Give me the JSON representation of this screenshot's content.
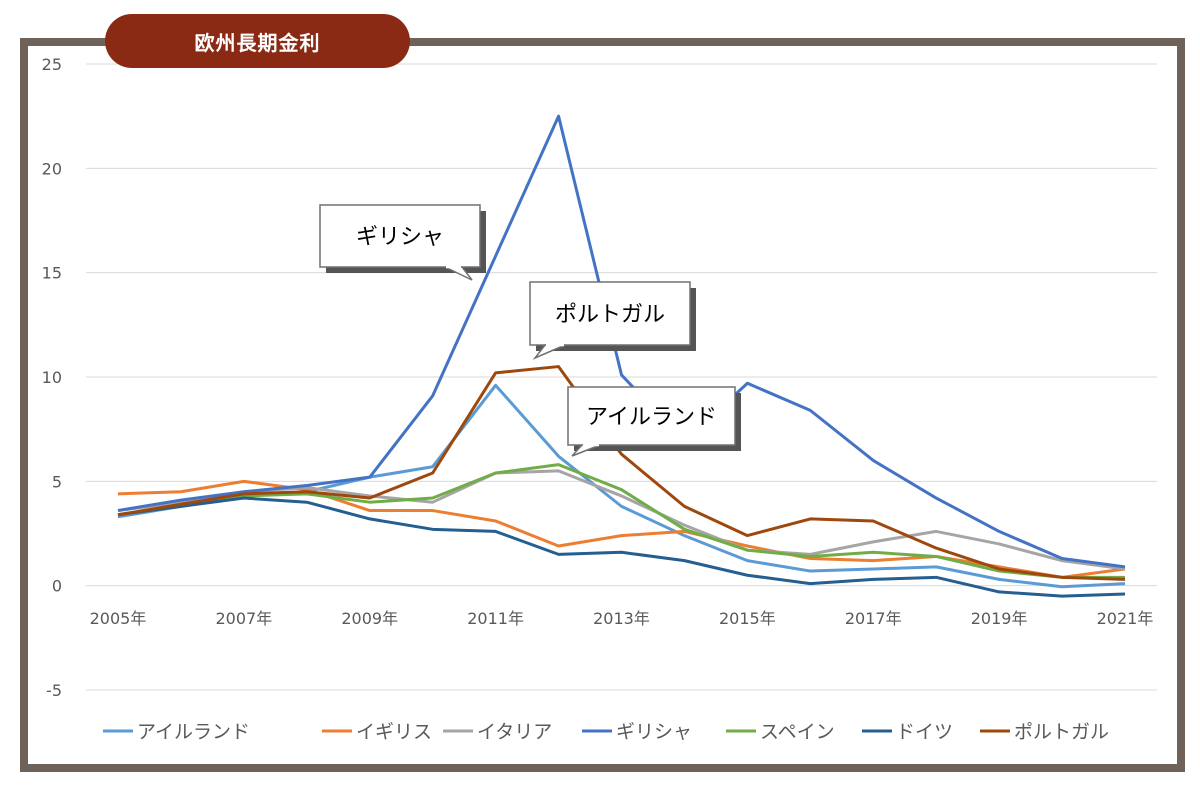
{
  "chart_data": {
    "type": "line",
    "title": "欧州長期金利",
    "xlabel": "",
    "ylabel": "",
    "x": [
      2005,
      2006,
      2007,
      2008,
      2009,
      2010,
      2011,
      2012,
      2013,
      2014,
      2015,
      2016,
      2017,
      2018,
      2019,
      2020,
      2021
    ],
    "x_tick_labels": [
      "2005年",
      "2007年",
      "2009年",
      "2011年",
      "2013年",
      "2015年",
      "2017年",
      "2019年",
      "2021年"
    ],
    "y_tick_labels": [
      "25",
      "20",
      "15",
      "10",
      "5",
      "0",
      "-5"
    ],
    "ylim": [
      -5,
      25
    ],
    "grid": true,
    "legend_position": "bottom",
    "series": [
      {
        "name": "アイルランド",
        "color": "#5b9bd5",
        "values": [
          3.3,
          3.8,
          4.3,
          4.5,
          5.2,
          5.7,
          9.6,
          6.2,
          3.8,
          2.4,
          1.2,
          0.7,
          0.8,
          0.9,
          0.3,
          -0.05,
          0.1
        ]
      },
      {
        "name": "イギリス",
        "color": "#ed7d31",
        "values": [
          4.4,
          4.5,
          5.0,
          4.6,
          3.6,
          3.6,
          3.1,
          1.9,
          2.4,
          2.6,
          1.9,
          1.3,
          1.2,
          1.4,
          0.9,
          0.4,
          0.8
        ]
      },
      {
        "name": "イタリア",
        "color": "#a5a5a5",
        "values": [
          3.6,
          4.0,
          4.5,
          4.7,
          4.3,
          4.0,
          5.4,
          5.5,
          4.3,
          2.9,
          1.7,
          1.5,
          2.1,
          2.6,
          2.0,
          1.2,
          0.8
        ]
      },
      {
        "name": "ギリシャ",
        "color": "#4472c4",
        "values": [
          3.6,
          4.1,
          4.5,
          4.8,
          5.2,
          9.1,
          15.8,
          22.5,
          10.1,
          6.9,
          9.7,
          8.4,
          6.0,
          4.2,
          2.6,
          1.3,
          0.9
        ]
      },
      {
        "name": "スペイン",
        "color": "#70ad47",
        "values": [
          3.4,
          3.8,
          4.3,
          4.4,
          4.0,
          4.2,
          5.4,
          5.8,
          4.6,
          2.7,
          1.7,
          1.4,
          1.6,
          1.4,
          0.7,
          0.4,
          0.4
        ]
      },
      {
        "name": "ドイツ",
        "color": "#255e91",
        "values": [
          3.4,
          3.8,
          4.2,
          4.0,
          3.2,
          2.7,
          2.6,
          1.5,
          1.6,
          1.2,
          0.5,
          0.1,
          0.3,
          0.4,
          -0.3,
          -0.5,
          -0.4
        ]
      },
      {
        "name": "ポルトガル",
        "color": "#9e480e",
        "values": [
          3.4,
          3.9,
          4.4,
          4.5,
          4.2,
          5.4,
          10.2,
          10.5,
          6.3,
          3.8,
          2.4,
          3.2,
          3.1,
          1.8,
          0.8,
          0.4,
          0.3
        ]
      }
    ],
    "annotations": [
      "ギリシャ",
      "ポルトガル",
      "アイルランド"
    ]
  },
  "colors": {
    "frame": "#6f6259",
    "title_background": "#8b2a14",
    "grid": "#d9d9d9"
  }
}
